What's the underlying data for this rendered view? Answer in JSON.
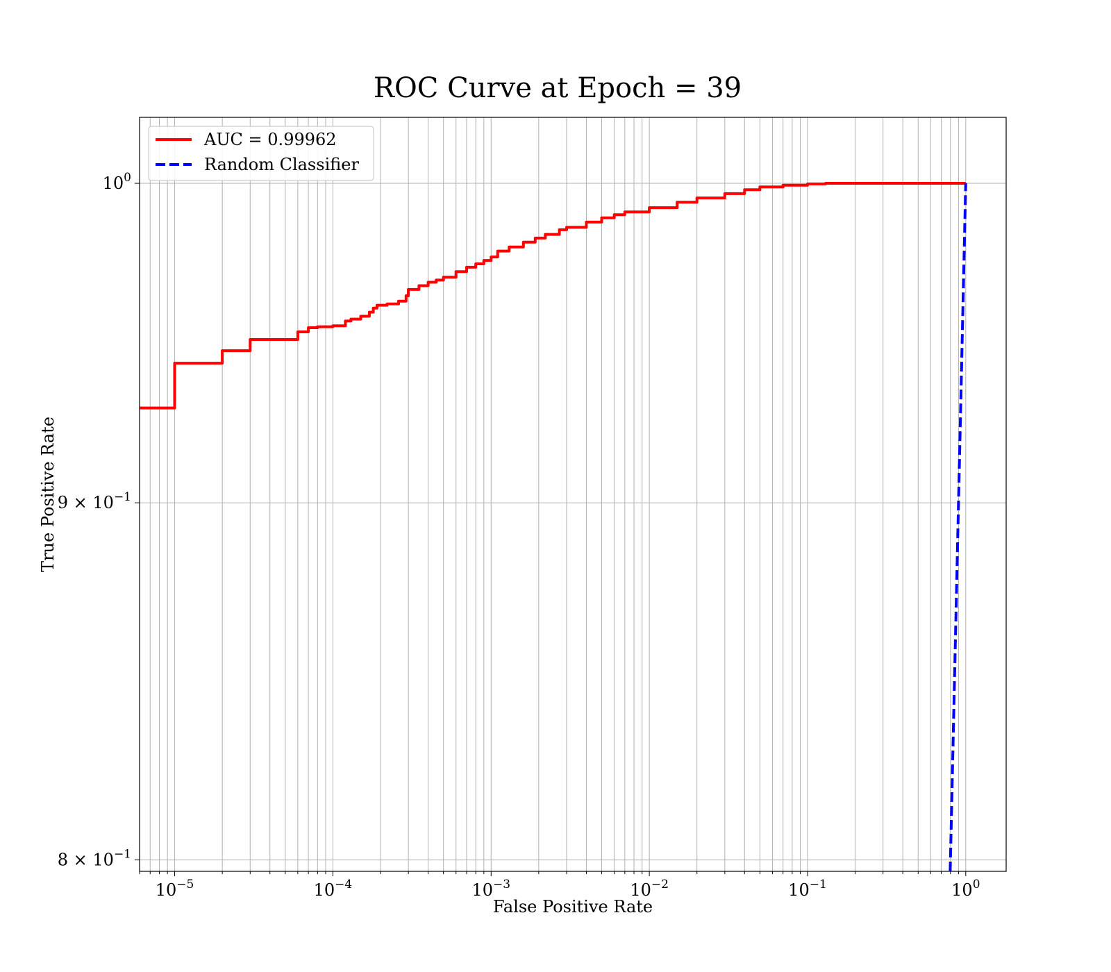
{
  "chart_data": {
    "type": "line",
    "title": "ROC Curve at Epoch = 39",
    "xlabel": "False Positive Rate",
    "ylabel": "True Positive Rate",
    "xscale": "log",
    "yscale": "log",
    "xlim": [
      6e-06,
      1.8
    ],
    "ylim": [
      0.797,
      1.022
    ],
    "grid": true,
    "legend_position": "top-left",
    "x_ticks": [
      {
        "value": 1e-05,
        "mantissa": "10",
        "exp": "−5"
      },
      {
        "value": 0.0001,
        "mantissa": "10",
        "exp": "−4"
      },
      {
        "value": 0.001,
        "mantissa": "10",
        "exp": "−3"
      },
      {
        "value": 0.01,
        "mantissa": "10",
        "exp": "−2"
      },
      {
        "value": 0.1,
        "mantissa": "10",
        "exp": "−1"
      },
      {
        "value": 1,
        "mantissa": "10",
        "exp": "0"
      }
    ],
    "y_ticks": [
      {
        "value": 0.8,
        "mantissa": "8 × 10",
        "exp": "−1"
      },
      {
        "value": 0.9,
        "mantissa": "9 × 10",
        "exp": "−1"
      },
      {
        "value": 1.0,
        "mantissa": "10",
        "exp": "0"
      }
    ],
    "series": [
      {
        "name": "AUC = 0.99962",
        "color": "#ff0000",
        "style": "solid",
        "step": true,
        "x": [
          6e-06,
          1e-05,
          2e-05,
          3e-05,
          6e-05,
          7e-05,
          8e-05,
          0.0001,
          0.00012,
          0.00013,
          0.00015,
          0.00017,
          0.00018,
          0.00019,
          0.00022,
          0.00026,
          0.00029,
          0.0003,
          0.00035,
          0.0004,
          0.00045,
          0.0005,
          0.0006,
          0.0007,
          0.0008,
          0.0009,
          0.001,
          0.0011,
          0.0013,
          0.0016,
          0.0019,
          0.0022,
          0.0027,
          0.003,
          0.004,
          0.005,
          0.006,
          0.007,
          0.01,
          0.015,
          0.02,
          0.03,
          0.04,
          0.05,
          0.07,
          0.1,
          0.13,
          1
        ],
        "y": [
          0.9286,
          0.9424,
          0.9463,
          0.9498,
          0.9522,
          0.9535,
          0.9538,
          0.9541,
          0.9556,
          0.9562,
          0.9571,
          0.9584,
          0.9597,
          0.9606,
          0.961,
          0.9619,
          0.9636,
          0.9656,
          0.9668,
          0.9679,
          0.9686,
          0.9695,
          0.9713,
          0.9727,
          0.9738,
          0.9749,
          0.976,
          0.9779,
          0.9792,
          0.9808,
          0.9821,
          0.9833,
          0.9848,
          0.9856,
          0.9873,
          0.9887,
          0.9897,
          0.9906,
          0.992,
          0.9938,
          0.9952,
          0.9966,
          0.9979,
          0.9988,
          0.9994,
          0.9998,
          1.0,
          1.0
        ]
      },
      {
        "name": "Random Classifier",
        "color": "#0000ff",
        "style": "dashed",
        "step": false,
        "x": [
          0.797,
          1.0
        ],
        "y": [
          0.797,
          1.0
        ]
      }
    ]
  }
}
